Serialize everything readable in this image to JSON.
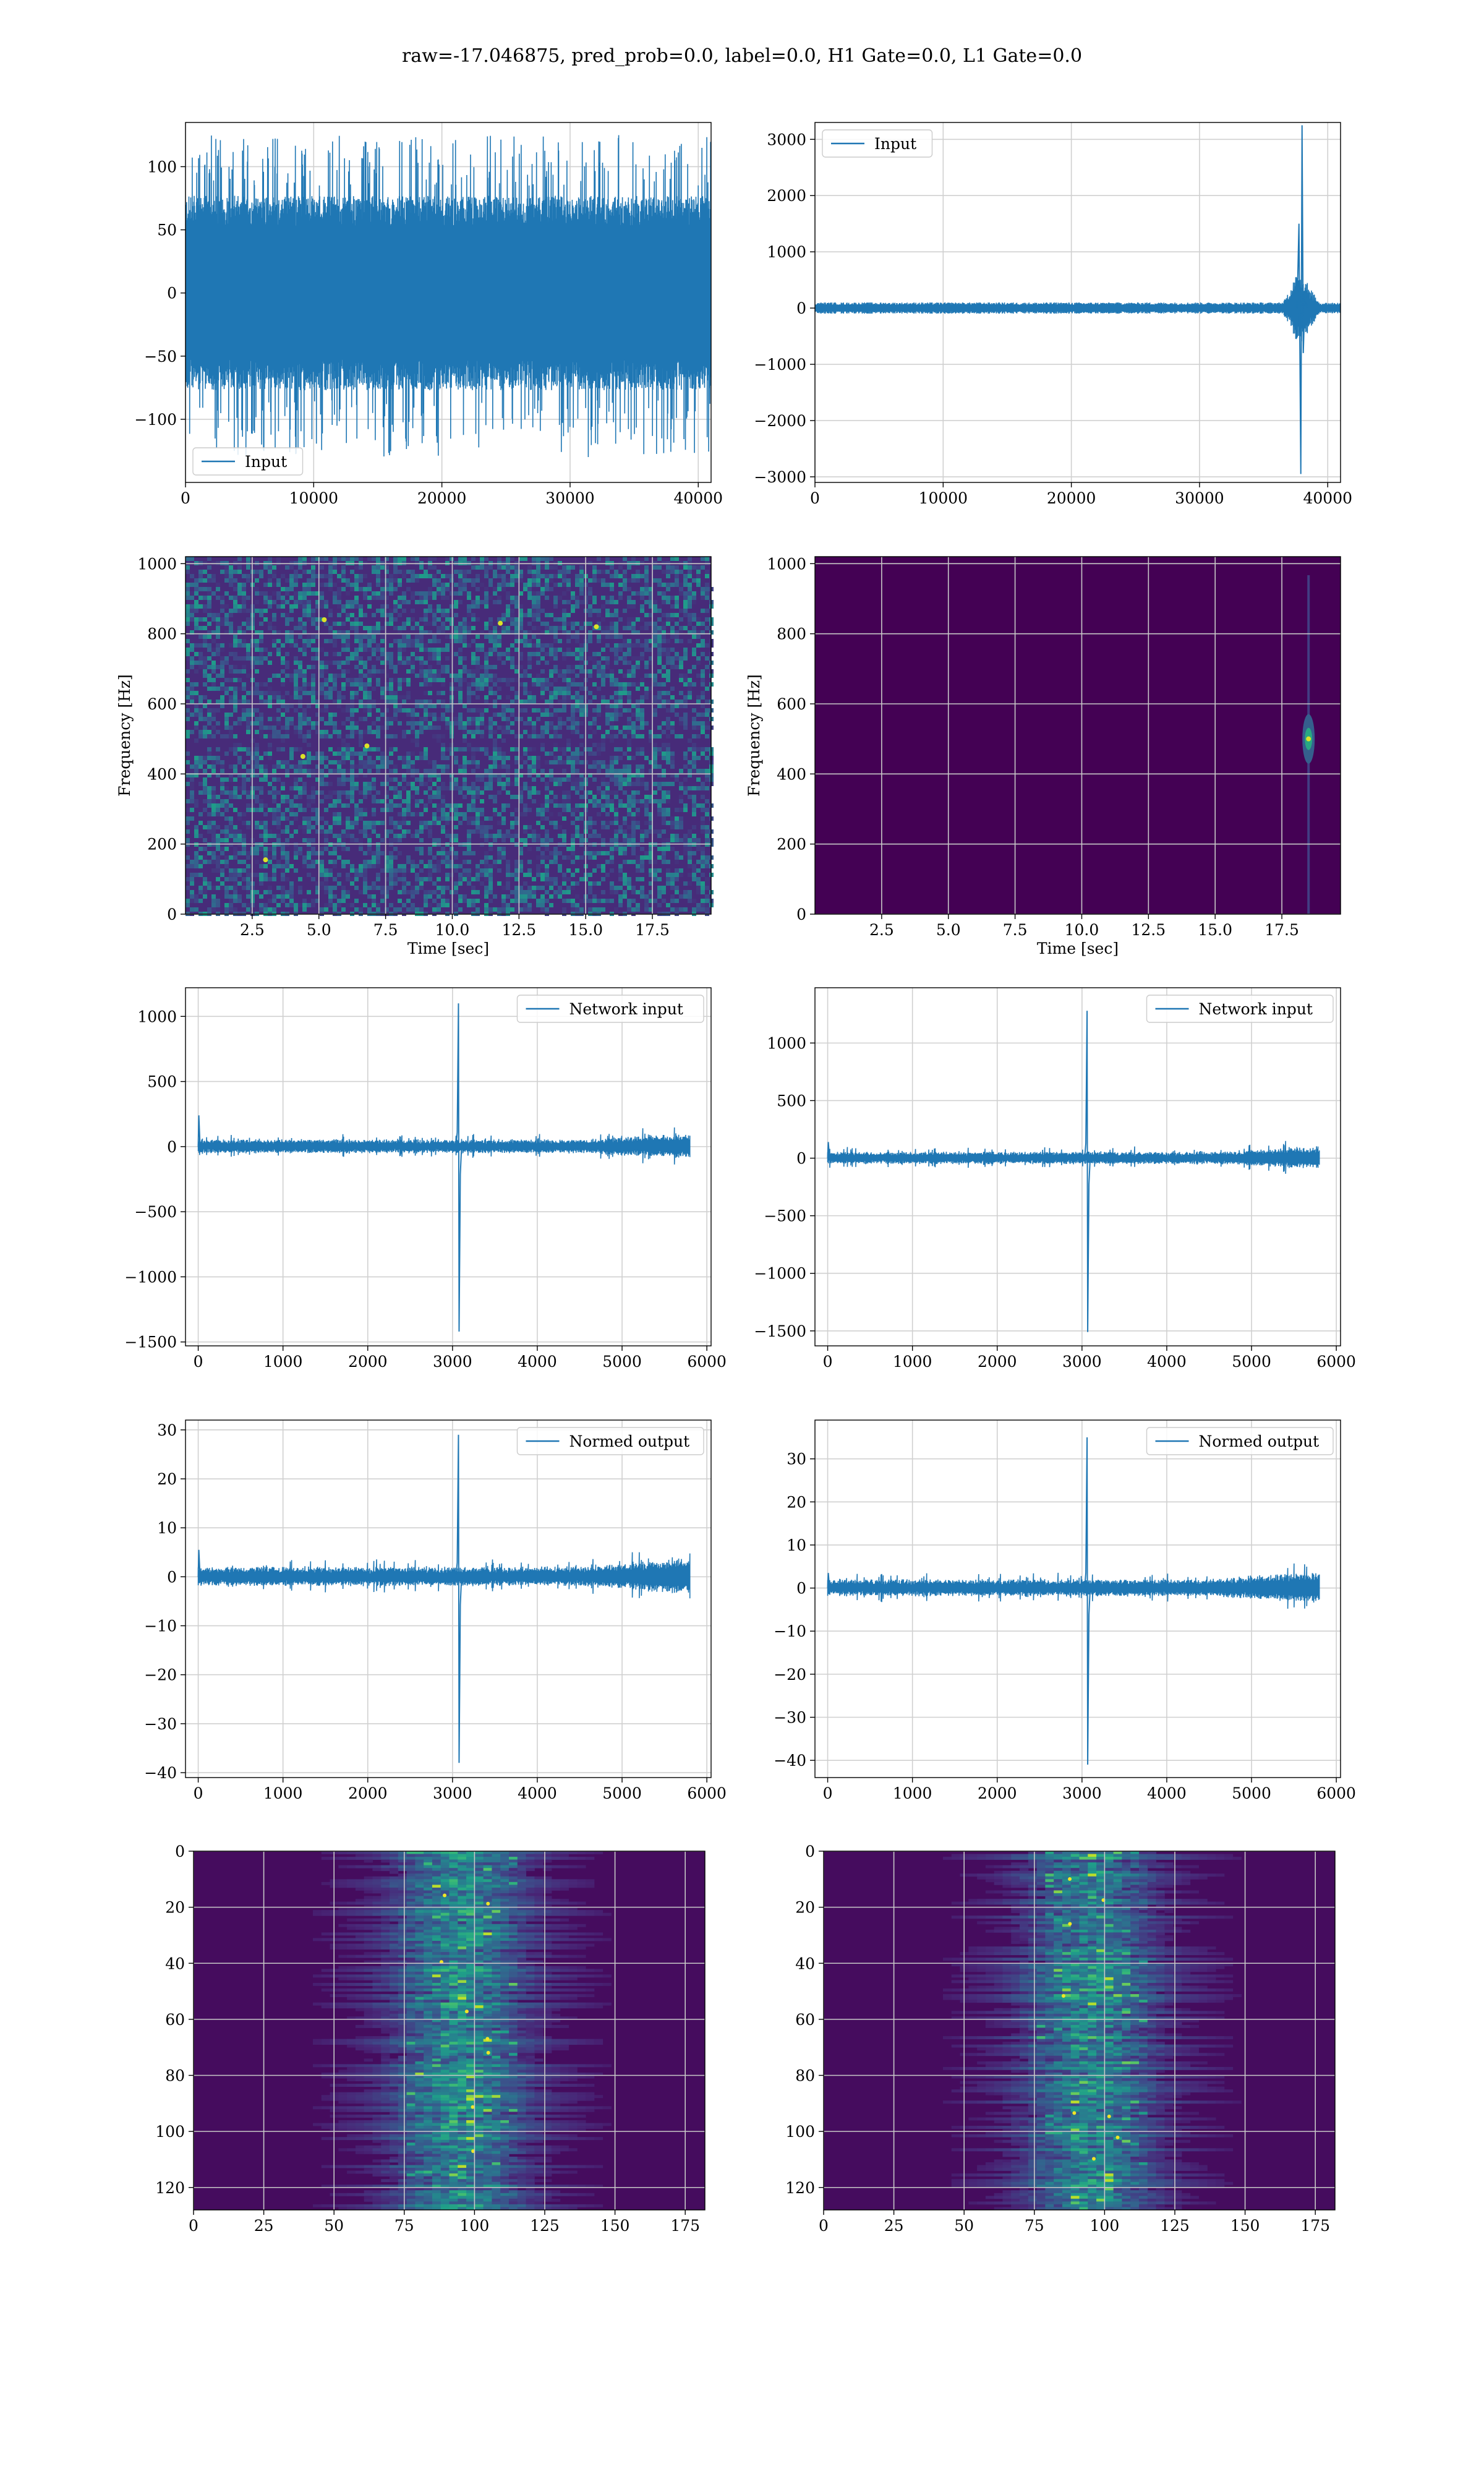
{
  "figure_title": "raw=-17.046875, pred_prob=0.0, label=0.0, H1 Gate=0.0, L1 Gate=0.0",
  "colors": {
    "line": "#1f77b4",
    "grid": "#d0d0d0",
    "cmap_low": "#440154",
    "cmap_high": "#fde725"
  },
  "chart_data": [
    {
      "id": "h1-input",
      "type": "line",
      "series": [
        {
          "name": "Input",
          "description": "dense noise band about ±70 with spikes to ±125 across the whole record"
        }
      ],
      "xlim": [
        0,
        41000
      ],
      "xticks": [
        0,
        10000,
        20000,
        30000,
        40000
      ],
      "ylim": [
        -150,
        135
      ],
      "yticks": [
        -100,
        -50,
        0,
        50,
        100
      ],
      "noise_band": 70,
      "spike_max": 125,
      "grid": true,
      "legend": "lower-left",
      "xlabel": "",
      "ylabel": ""
    },
    {
      "id": "l1-input",
      "type": "line",
      "series": [
        {
          "name": "Input",
          "description": "flat ±60 noise with a burst near x=38000 reaching 3250 and -2950"
        }
      ],
      "xlim": [
        0,
        41000
      ],
      "xticks": [
        0,
        10000,
        20000,
        30000,
        40000
      ],
      "ylim": [
        -3100,
        3300
      ],
      "yticks": [
        -3000,
        -2000,
        -1000,
        0,
        1000,
        2000,
        3000
      ],
      "event_x": 37900,
      "event_peak": 3250,
      "event_trough": -2950,
      "grid": true,
      "legend": "upper-left",
      "xlabel": "",
      "ylabel": ""
    },
    {
      "id": "h1-spectrogram",
      "type": "heatmap",
      "xlim": [
        0,
        19.7
      ],
      "xticks": [
        2.5,
        5.0,
        7.5,
        10.0,
        12.5,
        15.0,
        17.5
      ],
      "ylim": [
        0,
        1020
      ],
      "yticks": [
        0,
        200,
        400,
        600,
        800,
        1000
      ],
      "xlabel": "Time [sec]",
      "ylabel": "Frequency [Hz]",
      "grid": true,
      "description": "broadband noise, faint horizontal band near 500 Hz, scattered bright pixels",
      "hot_spots": [
        [
          3.0,
          155
        ],
        [
          6.8,
          480
        ],
        [
          5.2,
          840
        ],
        [
          11.8,
          830
        ],
        [
          15.4,
          820
        ],
        [
          4.4,
          450
        ]
      ]
    },
    {
      "id": "l1-spectrogram",
      "type": "heatmap",
      "xlim": [
        0,
        19.7
      ],
      "xticks": [
        2.5,
        5.0,
        7.5,
        10.0,
        12.5,
        15.0,
        17.5
      ],
      "ylim": [
        0,
        1020
      ],
      "yticks": [
        0,
        200,
        400,
        600,
        800,
        1000
      ],
      "xlabel": "Time [sec]",
      "ylabel": "Frequency [Hz]",
      "grid": true,
      "description": "uniform dark background with a single bright blob near t=18.5 s, f=500 Hz",
      "event": {
        "t": 18.5,
        "f": 500
      }
    },
    {
      "id": "h1-network-input",
      "type": "line",
      "series": [
        {
          "name": "Network input"
        }
      ],
      "xlim": [
        -150,
        6050
      ],
      "xticks": [
        0,
        1000,
        2000,
        3000,
        4000,
        5000,
        6000
      ],
      "ylim": [
        -1530,
        1220
      ],
      "yticks": [
        -1500,
        -1000,
        -500,
        0,
        500,
        1000
      ],
      "noise_band": 40,
      "event_x": 3070,
      "event_peak": 1100,
      "event_trough": -1420,
      "start_spike": 240,
      "grid": true,
      "legend": "upper-right",
      "xlabel": "",
      "ylabel": ""
    },
    {
      "id": "l1-network-input",
      "type": "line",
      "series": [
        {
          "name": "Network input"
        }
      ],
      "xlim": [
        -150,
        6050
      ],
      "xticks": [
        0,
        1000,
        2000,
        3000,
        4000,
        5000,
        6000
      ],
      "ylim": [
        -1630,
        1480
      ],
      "yticks": [
        -1500,
        -1000,
        -500,
        0,
        500,
        1000
      ],
      "noise_band": 40,
      "event_x": 3060,
      "event_peak": 1280,
      "event_trough": -1510,
      "start_spike": 140,
      "grid": true,
      "legend": "upper-right",
      "xlabel": "",
      "ylabel": ""
    },
    {
      "id": "h1-normed-output",
      "type": "line",
      "series": [
        {
          "name": "Normed output"
        }
      ],
      "xlim": [
        -150,
        6050
      ],
      "xticks": [
        0,
        1000,
        2000,
        3000,
        4000,
        5000,
        6000
      ],
      "ylim": [
        -41,
        32
      ],
      "yticks": [
        -40,
        -30,
        -20,
        -10,
        0,
        10,
        20,
        30
      ],
      "noise_band": 1.5,
      "event_x": 3070,
      "event_peak": 29,
      "event_trough": -38,
      "start_spike": 5.5,
      "grid": true,
      "legend": "upper-right",
      "xlabel": "",
      "ylabel": ""
    },
    {
      "id": "l1-normed-output",
      "type": "line",
      "series": [
        {
          "name": "Normed output"
        }
      ],
      "xlim": [
        -150,
        6050
      ],
      "xticks": [
        0,
        1000,
        2000,
        3000,
        4000,
        5000,
        6000
      ],
      "ylim": [
        -44,
        39
      ],
      "yticks": [
        -40,
        -30,
        -20,
        -10,
        0,
        10,
        20,
        30
      ],
      "noise_band": 1.5,
      "event_x": 3060,
      "event_peak": 35,
      "event_trough": -41,
      "start_spike": 3.5,
      "grid": true,
      "legend": "upper-right",
      "xlabel": "",
      "ylabel": ""
    },
    {
      "id": "h1-feature-map",
      "type": "heatmap",
      "xlim": [
        0,
        182
      ],
      "xticks": [
        0,
        25,
        50,
        75,
        100,
        125,
        150,
        175
      ],
      "ylim": [
        128,
        0
      ],
      "yticks": [
        0,
        20,
        40,
        60,
        80,
        100,
        120
      ],
      "grid": true,
      "xlabel": "",
      "ylabel": "",
      "description": "horizontal streaks, energy concentrated around columns 75-115",
      "center": 95
    },
    {
      "id": "l1-feature-map",
      "type": "heatmap",
      "xlim": [
        0,
        182
      ],
      "xticks": [
        0,
        25,
        50,
        75,
        100,
        125,
        150,
        175
      ],
      "ylim": [
        128,
        0
      ],
      "yticks": [
        0,
        20,
        40,
        60,
        80,
        100,
        120
      ],
      "grid": true,
      "xlabel": "",
      "ylabel": "",
      "description": "horizontal streaks, energy concentrated around columns 75-115",
      "center": 95
    }
  ]
}
